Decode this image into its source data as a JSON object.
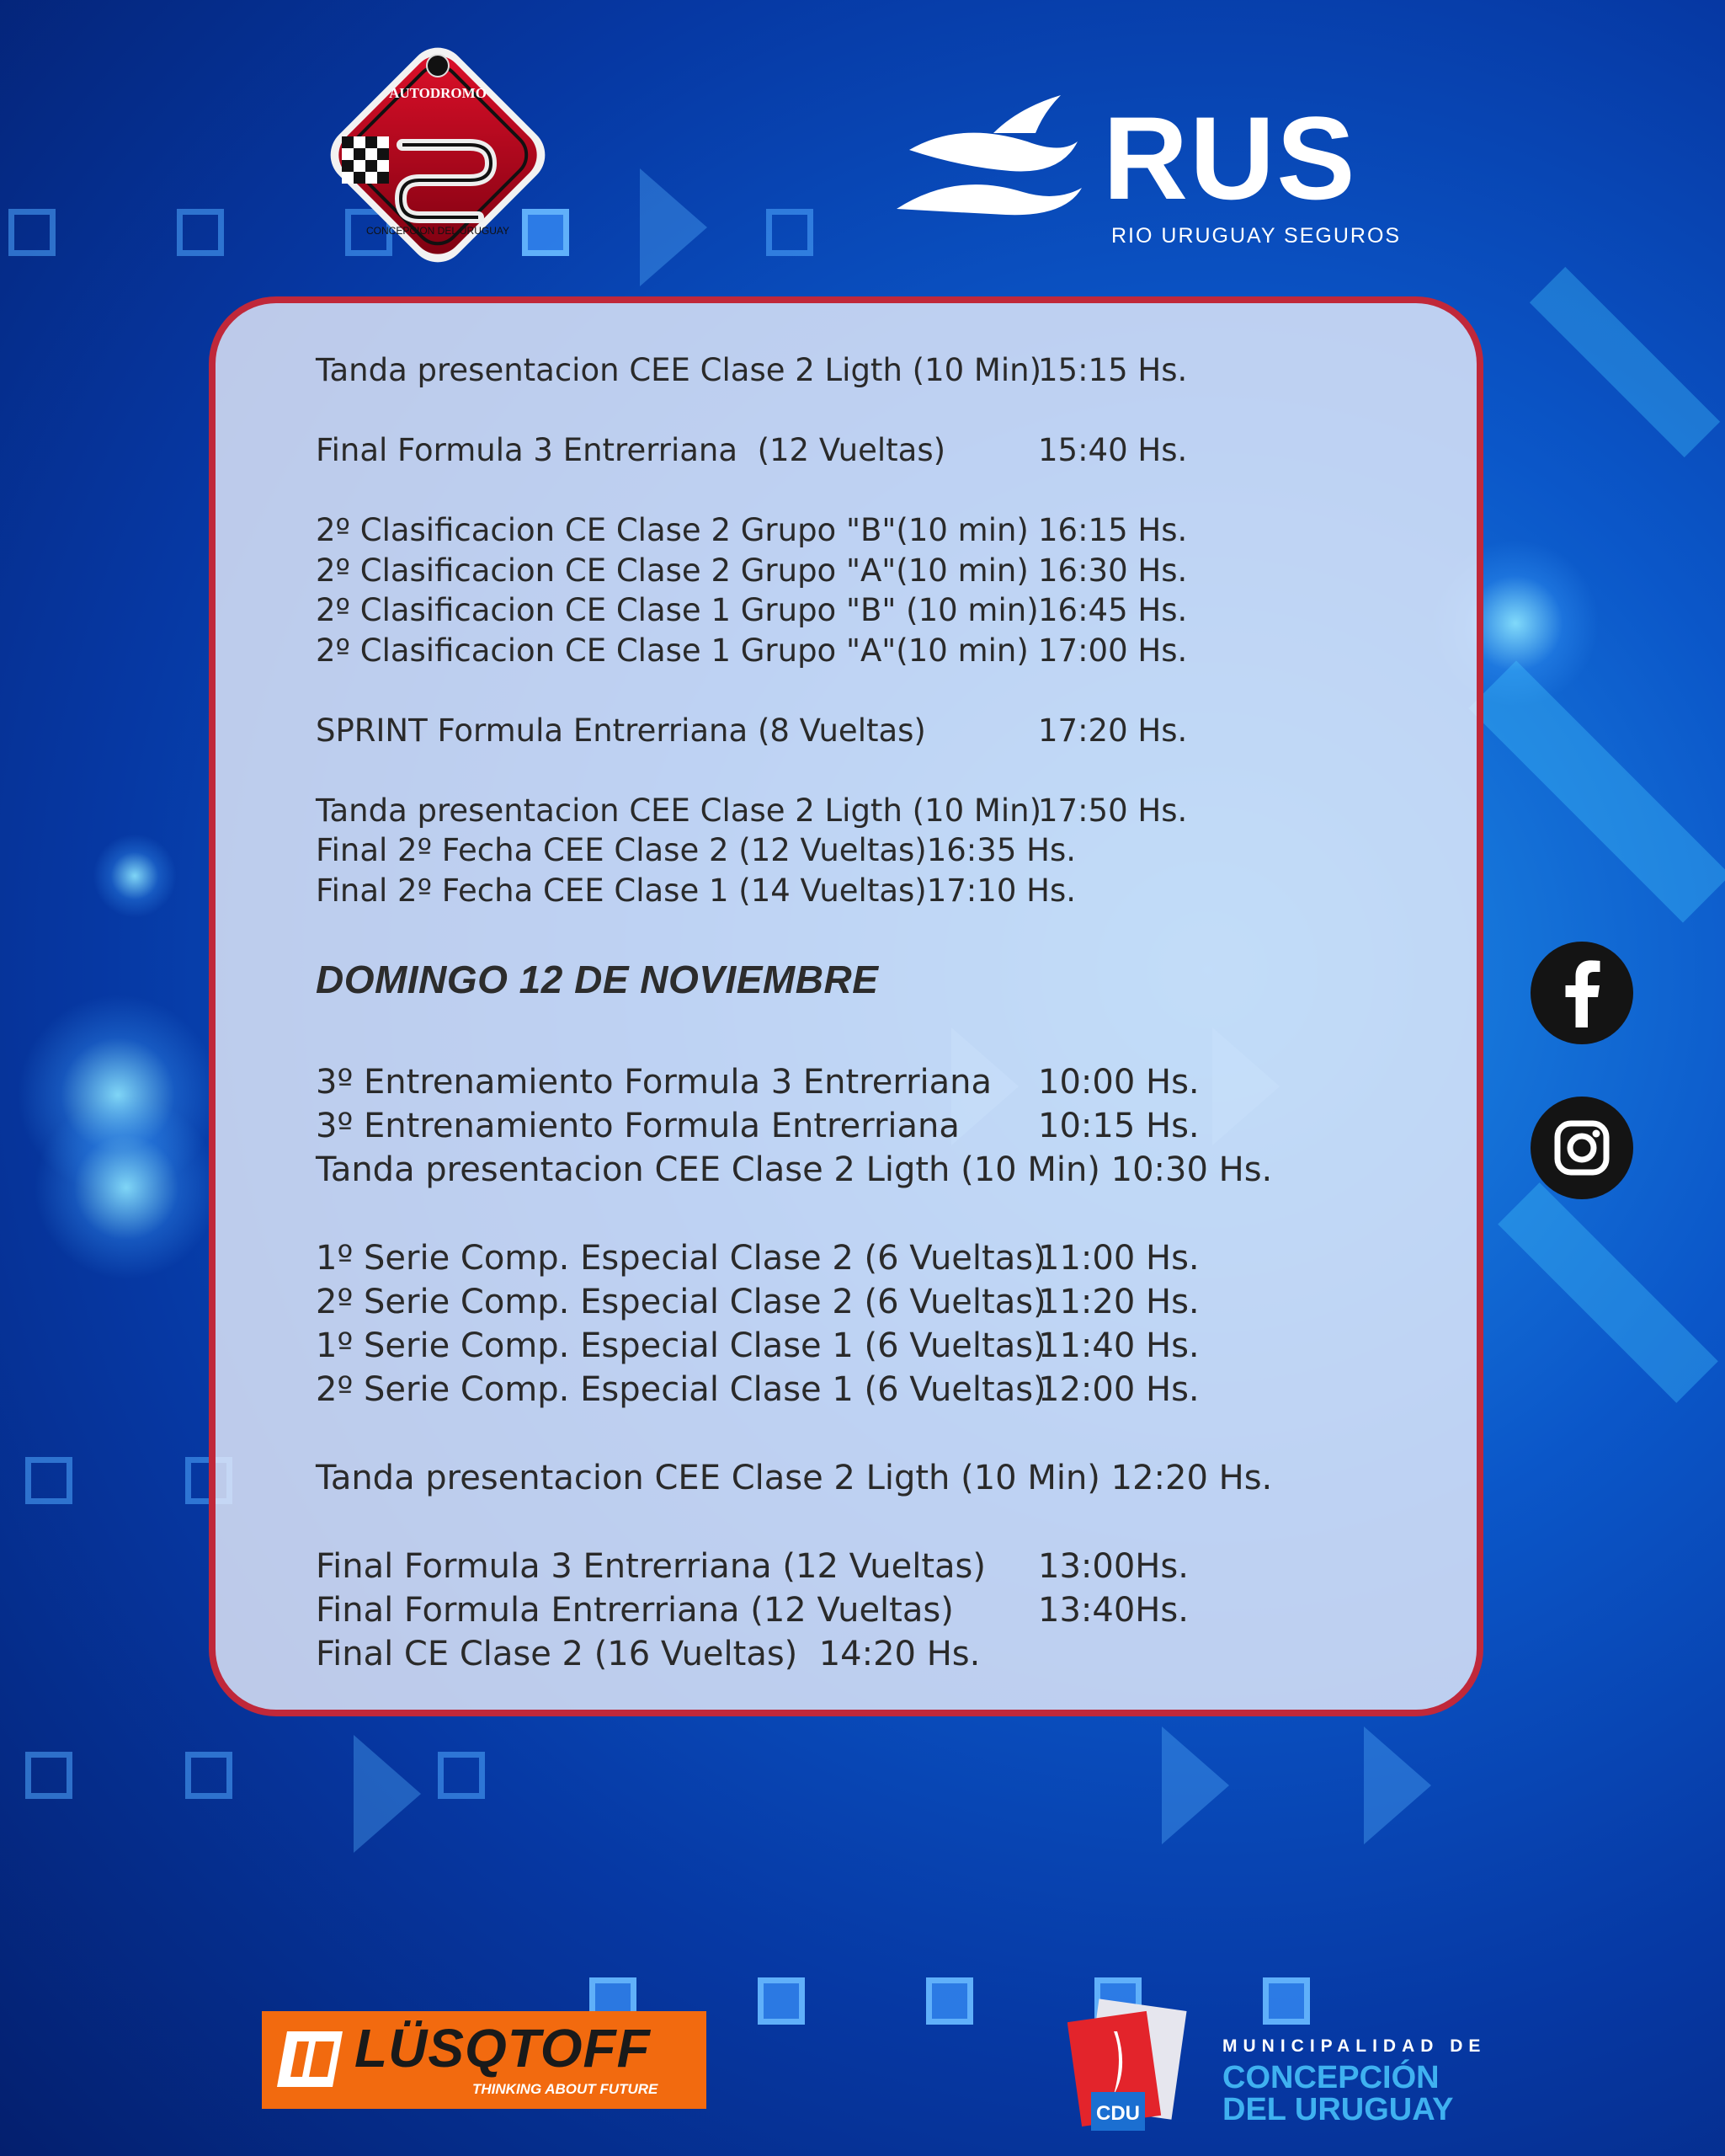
{
  "branding": {
    "autodromo_logo": {
      "top_text": "AUTODROMO",
      "ring_text": "CONCEPCION DEL URUGUAY"
    },
    "sponsor_rus": {
      "wordmark": "RUS",
      "subtitle": "RIO URUGUAY SEGUROS"
    },
    "sponsor_lusqtoff": {
      "wordmark": "LÜSQTOFF",
      "tagline": "THINKING ABOUT FUTURE"
    },
    "municipality": {
      "line1": "MUNICIPALIDAD DE",
      "line2": "CONCEPCIÓN",
      "line3": "DEL URUGUAY",
      "badge": "CDU"
    }
  },
  "schedule": {
    "saturday_events": [
      {
        "event": "Tanda presentacion CEE Clase 2 Ligth (10 Min)",
        "time": "15:15 Hs."
      },
      {
        "event": "Final Formula 3 Entrerriana  (12 Vueltas)",
        "time": "15:40 Hs."
      },
      {
        "event": "2º Clasificacion CE Clase 2 Grupo \"B\"(10 min)",
        "time": "16:15 Hs."
      },
      {
        "event": "2º Clasificacion CE Clase 2 Grupo \"A\"(10 min)",
        "time": "16:30 Hs."
      },
      {
        "event": "2º Clasificacion CE Clase 1 Grupo \"B\" (10 min)",
        "time": "16:45 Hs."
      },
      {
        "event": "2º Clasificacion CE Clase 1 Grupo \"A\"(10 min)",
        "time": "17:00 Hs."
      },
      {
        "event": "SPRINT Formula Entrerriana (8 Vueltas)",
        "time": "17:20 Hs."
      },
      {
        "event": "Tanda presentacion CEE Clase 2 Ligth (10 Min)",
        "time": "17:50 Hs."
      },
      {
        "event": "Final 2º Fecha CEE Clase 2 (12 Vueltas)16:35 Hs.",
        "time": ""
      },
      {
        "event": "Final 2º Fecha CEE Clase 1 (14 Vueltas)17:10 Hs.",
        "time": ""
      }
    ],
    "sunday_heading": "DOMINGO 12 DE NOVIEMBRE",
    "sunday_events": [
      {
        "event": "3º Entrenamiento Formula 3 Entrerriana",
        "time": "10:00 Hs."
      },
      {
        "event": "3º Entrenamiento Formula Entrerriana",
        "time": "10:15 Hs."
      },
      {
        "event": "Tanda presentacion CEE Clase 2 Ligth (10 Min) 10:30 Hs.",
        "time": ""
      },
      {
        "event": "1º Serie Comp. Especial Clase 2 (6 Vueltas)",
        "time": "11:00 Hs."
      },
      {
        "event": "2º Serie Comp. Especial Clase 2 (6 Vueltas)",
        "time": "11:20 Hs."
      },
      {
        "event": "1º Serie Comp. Especial Clase 1 (6 Vueltas)",
        "time": "11:40 Hs."
      },
      {
        "event": "2º Serie Comp. Especial Clase 1 (6 Vueltas)",
        "time": "12:00 Hs."
      },
      {
        "event": "Tanda presentacion CEE Clase 2 Ligth (10 Min) 12:20 Hs.",
        "time": ""
      },
      {
        "event": "Final Formula 3 Entrerriana (12 Vueltas)",
        "time": "13:00Hs."
      },
      {
        "event": "Final Formula Entrerriana (12 Vueltas)",
        "time": "13:40Hs."
      },
      {
        "event": "Final CE Clase 2 (16 Vueltas)  14:20 Hs.",
        "time": ""
      }
    ]
  },
  "social": [
    {
      "icon": "facebook-icon"
    },
    {
      "icon": "instagram-icon"
    }
  ],
  "colors": {
    "card_border": "#c0283a",
    "text": "#2a2a2a",
    "lusqtoff_orange": "#f26a0f",
    "muni_blue": "#3fb1f0"
  }
}
